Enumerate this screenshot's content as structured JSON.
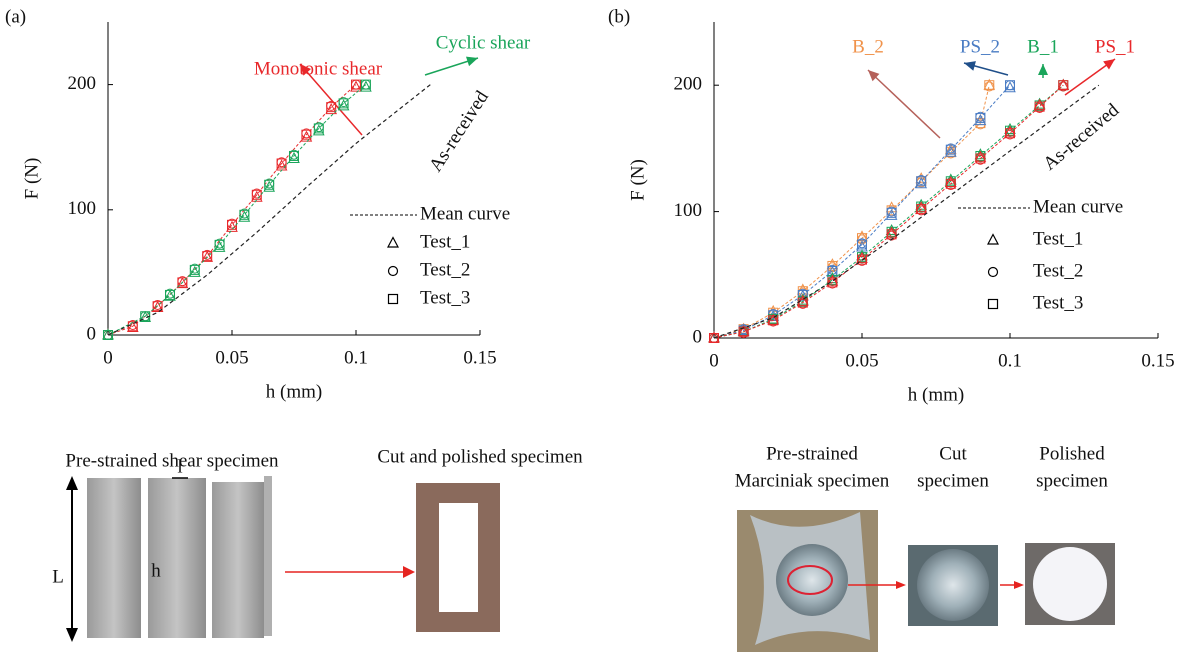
{
  "chart_data": [
    {
      "type": "line",
      "panel": "(a)",
      "x_label": "h (mm)",
      "y_label": "F (N)",
      "xlim": [
        0,
        0.15
      ],
      "xticks": [
        0,
        0.05,
        0.1,
        0.15
      ],
      "ylim": [
        0,
        250
      ],
      "yticks": [
        0,
        100,
        200
      ],
      "legend": [
        "Mean curve",
        "Test_1",
        "Test_2",
        "Test_3"
      ],
      "markers": [
        "triangle",
        "circle",
        "square"
      ],
      "groups": [
        {
          "name": "Monotonic shear",
          "color": "#e8282b",
          "x": [
            0,
            0.01,
            0.02,
            0.03,
            0.04,
            0.05,
            0.06,
            0.07,
            0.08,
            0.09,
            0.1
          ],
          "values": [
            0,
            7,
            23,
            42,
            63,
            88,
            112,
            137,
            160,
            182,
            200
          ],
          "tests": [
            [
              0,
              6,
              22,
              41,
              62,
              86,
              110,
              135,
              158,
              180,
              198
            ],
            [
              0,
              8,
              24,
              43,
              64,
              89,
              113,
              138,
              161,
              183,
              200
            ],
            [
              0,
              7,
              23,
              42,
              63,
              88,
              112,
              137,
              160,
              182,
              200
            ]
          ]
        },
        {
          "name": "Cyclic shear",
          "color": "#1aa55a",
          "x": [
            0,
            0.015,
            0.025,
            0.035,
            0.045,
            0.055,
            0.065,
            0.075,
            0.085,
            0.095,
            0.104
          ],
          "values": [
            0,
            15,
            32,
            52,
            72,
            96,
            120,
            143,
            165,
            185,
            200
          ],
          "tests": [
            [
              0,
              14,
              31,
              50,
              70,
              94,
              118,
              141,
              163,
              183,
              198
            ],
            [
              0,
              15,
              33,
              53,
              73,
              97,
              121,
              144,
              166,
              186,
              200
            ],
            [
              0,
              15,
              32,
              52,
              72,
              96,
              120,
              143,
              165,
              185,
              200
            ]
          ]
        },
        {
          "name": "As-received",
          "color": "#222222",
          "x": [
            0,
            0.02,
            0.04,
            0.06,
            0.08,
            0.1,
            0.13
          ],
          "values": [
            0,
            18,
            48,
            82,
            118,
            153,
            200
          ],
          "tests": []
        }
      ]
    },
    {
      "type": "line",
      "panel": "(b)",
      "x_label": "h (mm)",
      "y_label": "F (N)",
      "xlim": [
        0,
        0.15
      ],
      "xticks": [
        0,
        0.05,
        0.1,
        0.15
      ],
      "ylim": [
        0,
        250
      ],
      "yticks": [
        0,
        100,
        200
      ],
      "legend": [
        "Mean curve",
        "Test_1",
        "Test_2",
        "Test_3"
      ],
      "markers": [
        "triangle",
        "circle",
        "square"
      ],
      "groups": [
        {
          "name": "B_2",
          "color": "#f0924a",
          "x": [
            0,
            0.01,
            0.02,
            0.03,
            0.04,
            0.05,
            0.06,
            0.07,
            0.08,
            0.09,
            0.093
          ],
          "values": [
            0,
            7,
            20,
            37,
            57,
            79,
            101,
            124,
            147,
            170,
            200
          ],
          "tests": [
            [
              0,
              7,
              21,
              38,
              58,
              80,
              103,
              126,
              149,
              172,
              200
            ],
            [
              0,
              6,
              19,
              36,
              56,
              78,
              100,
              123,
              146,
              169,
              199
            ],
            [
              0,
              7,
              20,
              37,
              57,
              79,
              101,
              124,
              147,
              170,
              200
            ]
          ]
        },
        {
          "name": "PS_2",
          "color": "#4a7cc4",
          "x": [
            0,
            0.01,
            0.02,
            0.03,
            0.04,
            0.05,
            0.06,
            0.07,
            0.08,
            0.09,
            0.1
          ],
          "values": [
            0,
            6,
            18,
            34,
            53,
            74,
            99,
            124,
            149,
            174,
            200
          ],
          "tests": [
            [
              0,
              6,
              17,
              33,
              52,
              72,
              97,
              122,
              147,
              172,
              198
            ],
            [
              0,
              7,
              19,
              35,
              54,
              75,
              100,
              125,
              150,
              175,
              200
            ],
            [
              0,
              6,
              18,
              34,
              53,
              74,
              99,
              124,
              149,
              174,
              200
            ]
          ]
        },
        {
          "name": "B_1",
          "color": "#1aa55a",
          "x": [
            0,
            0.01,
            0.02,
            0.03,
            0.04,
            0.05,
            0.06,
            0.07,
            0.08,
            0.09,
            0.1,
            0.11,
            0.118
          ],
          "values": [
            0,
            5,
            15,
            29,
            46,
            64,
            84,
            104,
            124,
            144,
            164,
            184,
            200
          ],
          "tests": [
            [
              0,
              5,
              15,
              30,
              47,
              65,
              85,
              105,
              125,
              145,
              165,
              185,
              200
            ],
            [
              0,
              5,
              14,
              28,
              45,
              63,
              83,
              103,
              123,
              143,
              163,
              183,
              199
            ],
            [
              0,
              5,
              15,
              29,
              46,
              64,
              84,
              104,
              124,
              144,
              164,
              184,
              200
            ]
          ]
        },
        {
          "name": "PS_1",
          "color": "#e8282b",
          "x": [
            0,
            0.01,
            0.02,
            0.03,
            0.04,
            0.05,
            0.06,
            0.07,
            0.08,
            0.09,
            0.1,
            0.11,
            0.118
          ],
          "values": [
            0,
            5,
            14,
            28,
            44,
            62,
            82,
            102,
            122,
            142,
            162,
            183,
            200
          ],
          "tests": [
            [
              0,
              5,
              14,
              29,
              45,
              63,
              83,
              103,
              123,
              143,
              163,
              184,
              200
            ],
            [
              0,
              4,
              13,
              27,
              43,
              61,
              81,
              101,
              121,
              141,
              161,
              182,
              199
            ],
            [
              0,
              5,
              14,
              28,
              44,
              62,
              82,
              102,
              122,
              142,
              162,
              183,
              200
            ]
          ]
        },
        {
          "name": "As-received",
          "color": "#222222",
          "x": [
            0,
            0.02,
            0.04,
            0.06,
            0.08,
            0.1,
            0.13
          ],
          "values": [
            0,
            16,
            45,
            78,
            113,
            148,
            200
          ],
          "tests": []
        }
      ]
    }
  ],
  "photos_a": {
    "caption_left": "Pre-strained shear specimen",
    "caption_right": "Cut and polished specimen",
    "dim_L": "L",
    "dim_l": "l",
    "dim_h": "h"
  },
  "photos_b": {
    "captions": [
      [
        "Pre-strained",
        "Marciniak specimen"
      ],
      [
        "Cut",
        "specimen"
      ],
      [
        "Polished",
        "specimen"
      ]
    ]
  }
}
